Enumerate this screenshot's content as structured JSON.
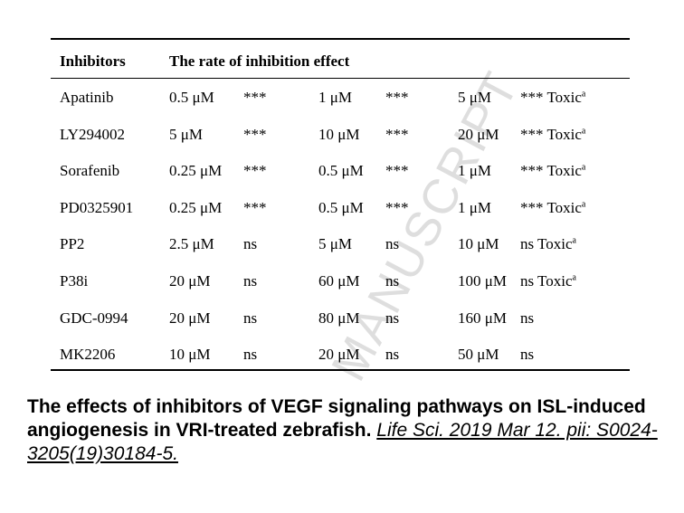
{
  "table": {
    "headers": {
      "col1": "Inhibitors",
      "col2": "The rate of inhibition effect"
    },
    "rows": [
      {
        "inhibitor": "Apatinib",
        "d1": "0.5 μM",
        "s1": "***",
        "d2": "1 μM",
        "s2": "***",
        "d3": "5 μM",
        "s3": "*** Toxic",
        "sup": "a"
      },
      {
        "inhibitor": "LY294002",
        "d1": "5 μM",
        "s1": "***",
        "d2": "10 μM",
        "s2": "***",
        "d3": "20 μM",
        "s3": "*** Toxic",
        "sup": "a"
      },
      {
        "inhibitor": "Sorafenib",
        "d1": "0.25 μM",
        "s1": "***",
        "d2": "0.5 μM",
        "s2": "***",
        "d3": "1 μM",
        "s3": "*** Toxic",
        "sup": "a"
      },
      {
        "inhibitor": "PD0325901",
        "d1": "0.25 μM",
        "s1": "***",
        "d2": "0.5 μM",
        "s2": "***",
        "d3": "1 μM",
        "s3": "*** Toxic",
        "sup": "a"
      },
      {
        "inhibitor": "PP2",
        "d1": "2.5 μM",
        "s1": "ns",
        "d2": "5 μM",
        "s2": "ns",
        "d3": "10 μM",
        "s3": "ns Toxic",
        "sup": "a"
      },
      {
        "inhibitor": "P38i",
        "d1": "20 μM",
        "s1": "ns",
        "d2": "60 μM",
        "s2": "ns",
        "d3": "100 μM",
        "s3": "ns Toxic",
        "sup": "a"
      },
      {
        "inhibitor": "GDC-0994",
        "d1": "20 μM",
        "s1": "ns",
        "d2": "80 μM",
        "s2": "ns",
        "d3": "160 μM",
        "s3": "ns",
        "sup": ""
      },
      {
        "inhibitor": "MK2206",
        "d1": "10 μM",
        "s1": "ns",
        "d2": "20 μM",
        "s2": "ns",
        "d3": "50 μM",
        "s3": "ns",
        "sup": ""
      }
    ]
  },
  "watermark": "MANUSCRIPT",
  "caption": {
    "title": "The effects of inhibitors of VEGF signaling pathways on ISL-induced angiogenesis in VRI-treated zebrafish.",
    "citation": "Life Sci. 2019 Mar 12. pii: S0024-3205(19)30184-5."
  }
}
